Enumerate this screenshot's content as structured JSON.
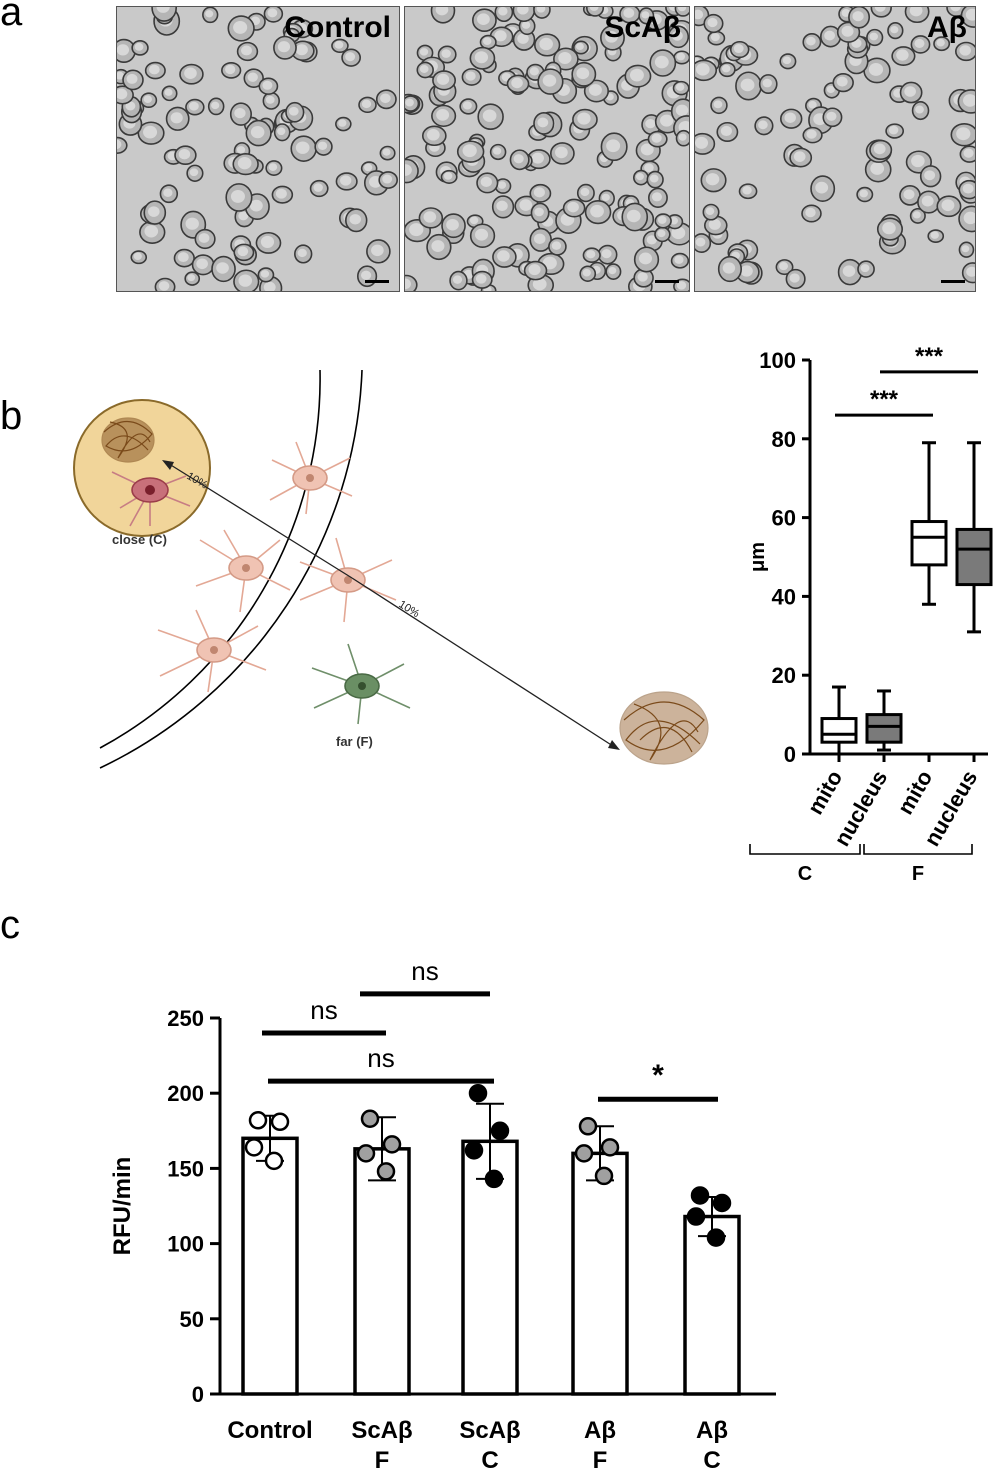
{
  "panels": {
    "a": "a",
    "b": "b",
    "c": "c"
  },
  "micrographs": [
    {
      "label": "Control"
    },
    {
      "label": "ScAβ"
    },
    {
      "label": "Aβ"
    }
  ],
  "schematic": {
    "close_label": "close (C)",
    "far_label": "far (F)",
    "pct_label_1": "10%",
    "pct_label_2": "10%"
  },
  "chart_data": [
    {
      "type": "box",
      "ylabel": "μm",
      "ylim": [
        0,
        100
      ],
      "yticks": [
        "0",
        "20",
        "40",
        "60",
        "80",
        "100"
      ],
      "categories": [
        "mito",
        "nucleus",
        "mito",
        "nucleus"
      ],
      "groups": [
        {
          "label": "C",
          "span": [
            0,
            1
          ]
        },
        {
          "label": "F",
          "span": [
            2,
            3
          ]
        }
      ],
      "boxes": [
        {
          "min": 0,
          "q1": 3,
          "median": 5,
          "q3": 9,
          "max": 17,
          "fill": "#ffffff"
        },
        {
          "min": 1,
          "q1": 3,
          "median": 7,
          "q3": 10,
          "max": 16,
          "fill": "#7a7a7a"
        },
        {
          "min": 38,
          "q1": 48,
          "median": 55,
          "q3": 59,
          "max": 79,
          "fill": "#ffffff"
        },
        {
          "min": 31,
          "q1": 43,
          "median": 52,
          "q3": 57,
          "max": 79,
          "fill": "#7a7a7a"
        }
      ],
      "significance": [
        {
          "from": 0,
          "to": 2,
          "y": 86,
          "label": "***"
        },
        {
          "from": 1,
          "to": 3,
          "y": 97,
          "label": "***"
        }
      ]
    },
    {
      "type": "bar",
      "ylabel": "RFU/min",
      "ylim": [
        0,
        250
      ],
      "yticks": [
        "0",
        "50",
        "100",
        "150",
        "200",
        "250"
      ],
      "categories": [
        {
          "line1": "Control",
          "line2": ""
        },
        {
          "line1": "ScAβ",
          "line2": "F"
        },
        {
          "line1": "ScAβ",
          "line2": "C"
        },
        {
          "line1": "Aβ",
          "line2": "F"
        },
        {
          "line1": "Aβ",
          "line2": "C"
        }
      ],
      "values": [
        170,
        163,
        168,
        160,
        118
      ],
      "sd": [
        15,
        21,
        25,
        18,
        13
      ],
      "points": [
        {
          "fill": "#ffffff",
          "values": [
            182,
            181,
            164,
            155
          ]
        },
        {
          "fill": "#a0a0a0",
          "values": [
            183,
            166,
            160,
            148
          ]
        },
        {
          "fill": "#000000",
          "values": [
            200,
            175,
            162,
            143
          ]
        },
        {
          "fill": "#a0a0a0",
          "values": [
            178,
            164,
            160,
            145
          ]
        },
        {
          "fill": "#000000",
          "values": [
            132,
            127,
            118,
            104
          ]
        }
      ],
      "significance": [
        {
          "from": 0,
          "to": 1,
          "y": 240,
          "label": "ns"
        },
        {
          "from": 1,
          "to": 2,
          "y": 266,
          "label": "ns"
        },
        {
          "from": 0,
          "to": 2,
          "y": 208,
          "label": "ns"
        },
        {
          "from": 3,
          "to": 4,
          "y": 196,
          "label": "*"
        }
      ]
    }
  ]
}
